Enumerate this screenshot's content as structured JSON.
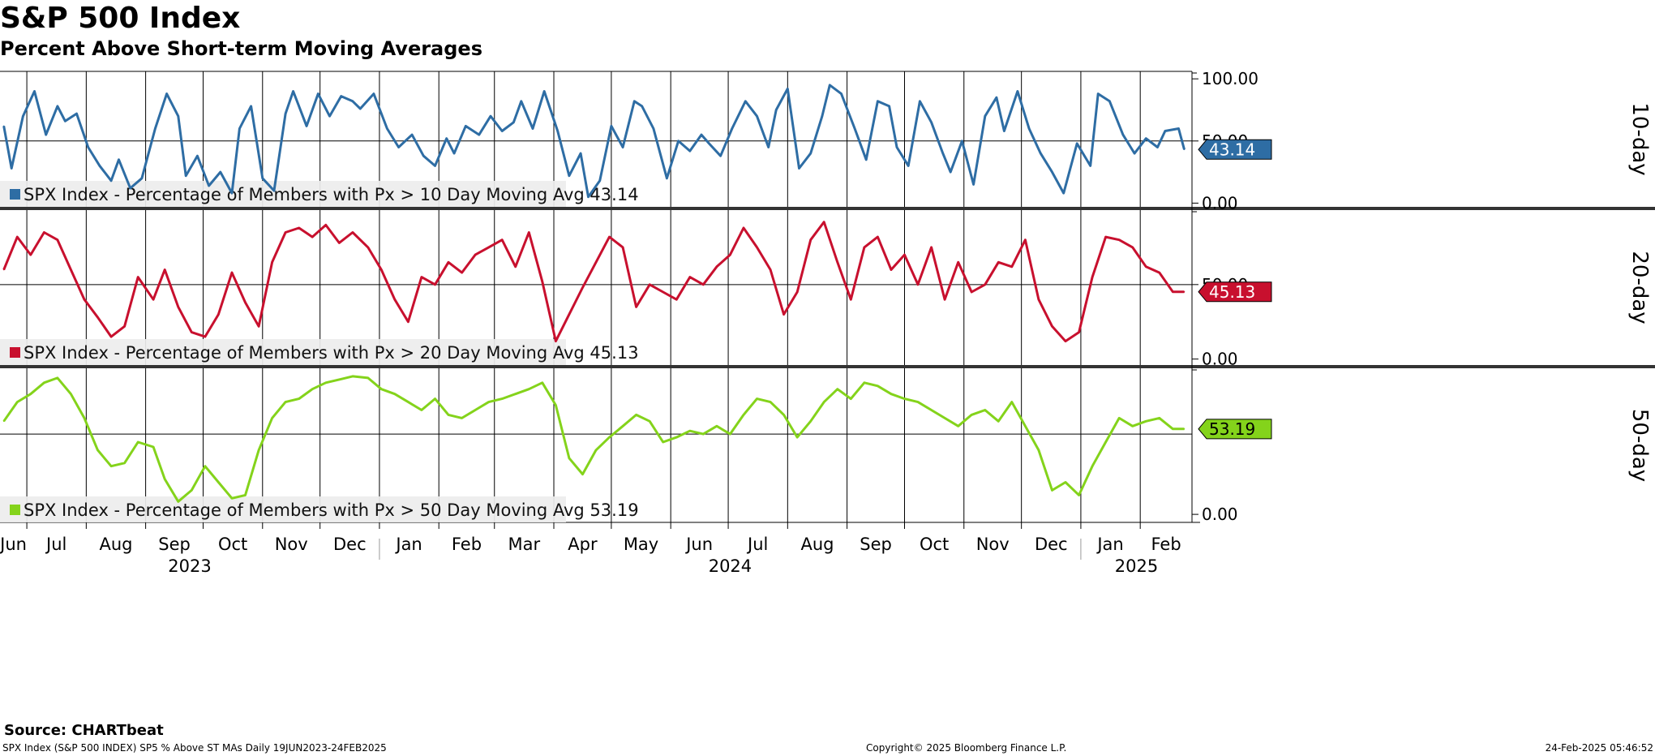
{
  "header": {
    "title": "S&P 500 Index",
    "subtitle": "Percent Above Short-term Moving Averages"
  },
  "footer": {
    "source": "Source: CHARTbeat",
    "left": "SPX Index (S&P 500 INDEX) SP5 % Above ST MAs  Daily 19JUN2023-24FEB2025",
    "center": "Copyright© 2025 Bloomberg Finance L.P.",
    "right": "24-Feb-2025 05:46:52"
  },
  "chart_data": [
    {
      "type": "line",
      "panel_label": "10-day",
      "legend": "SPX Index - Percentage of Members with Px > 10 Day Moving Avg 43.14",
      "last_value": "43.14",
      "color": "#2e6da4",
      "ylim": [
        -3,
        106
      ],
      "yticks": [
        "100.00",
        "50.00",
        "0.00"
      ],
      "x": [
        "2023-06-19",
        "2023-06-23",
        "2023-06-29",
        "2023-07-05",
        "2023-07-11",
        "2023-07-17",
        "2023-07-21",
        "2023-07-27",
        "2023-08-02",
        "2023-08-08",
        "2023-08-14",
        "2023-08-18",
        "2023-08-24",
        "2023-08-30",
        "2023-09-06",
        "2023-09-12",
        "2023-09-18",
        "2023-09-22",
        "2023-09-28",
        "2023-10-04",
        "2023-10-10",
        "2023-10-16",
        "2023-10-20",
        "2023-10-26",
        "2023-11-01",
        "2023-11-07",
        "2023-11-13",
        "2023-11-17",
        "2023-11-24",
        "2023-11-30",
        "2023-12-06",
        "2023-12-12",
        "2023-12-18",
        "2023-12-22",
        "2023-12-29",
        "2024-01-05",
        "2024-01-11",
        "2024-01-18",
        "2024-01-24",
        "2024-01-30",
        "2024-02-05",
        "2024-02-09",
        "2024-02-15",
        "2024-02-22",
        "2024-02-28",
        "2024-03-05",
        "2024-03-11",
        "2024-03-15",
        "2024-03-21",
        "2024-03-27",
        "2024-04-03",
        "2024-04-09",
        "2024-04-15",
        "2024-04-19",
        "2024-04-25",
        "2024-05-01",
        "2024-05-07",
        "2024-05-13",
        "2024-05-17",
        "2024-05-23",
        "2024-05-30",
        "2024-06-05",
        "2024-06-11",
        "2024-06-17",
        "2024-06-21",
        "2024-06-27",
        "2024-07-03",
        "2024-07-10",
        "2024-07-16",
        "2024-07-22",
        "2024-07-26",
        "2024-08-01",
        "2024-08-07",
        "2024-08-13",
        "2024-08-19",
        "2024-08-23",
        "2024-08-29",
        "2024-09-05",
        "2024-09-11",
        "2024-09-17",
        "2024-09-23",
        "2024-09-27",
        "2024-10-03",
        "2024-10-09",
        "2024-10-15",
        "2024-10-21",
        "2024-10-25",
        "2024-10-31",
        "2024-11-06",
        "2024-11-12",
        "2024-11-18",
        "2024-11-22",
        "2024-11-29",
        "2024-12-05",
        "2024-12-11",
        "2024-12-17",
        "2024-12-23",
        "2024-12-30",
        "2025-01-06",
        "2025-01-10",
        "2025-01-16",
        "2025-01-23",
        "2025-01-29",
        "2025-02-04",
        "2025-02-10",
        "2025-02-14",
        "2025-02-21",
        "2025-02-24"
      ],
      "values": [
        62,
        28,
        70,
        90,
        55,
        78,
        66,
        72,
        45,
        30,
        18,
        35,
        12,
        20,
        60,
        88,
        70,
        22,
        38,
        14,
        25,
        8,
        60,
        78,
        20,
        10,
        72,
        90,
        62,
        88,
        70,
        86,
        82,
        76,
        88,
        60,
        45,
        55,
        38,
        30,
        52,
        40,
        62,
        55,
        70,
        58,
        65,
        82,
        60,
        90,
        58,
        22,
        40,
        5,
        18,
        62,
        45,
        82,
        78,
        60,
        20,
        50,
        42,
        55,
        48,
        38,
        60,
        82,
        70,
        45,
        75,
        92,
        28,
        40,
        70,
        95,
        88,
        60,
        35,
        82,
        78,
        45,
        30,
        82,
        65,
        40,
        25,
        50,
        15,
        70,
        85,
        58,
        90,
        60,
        40,
        25,
        8,
        48,
        30,
        88,
        82,
        55,
        40,
        52,
        45,
        58,
        60,
        43.14
      ]
    },
    {
      "type": "line",
      "panel_label": "20-day",
      "legend": "SPX Index - Percentage of Members with Px > 20 Day Moving Avg 45.13",
      "last_value": "45.13",
      "color": "#c8102e",
      "ylim": [
        -4,
        100
      ],
      "yticks": [
        "50.00",
        "0.00"
      ],
      "x": [
        "2023-06-19",
        "2023-06-26",
        "2023-07-03",
        "2023-07-10",
        "2023-07-17",
        "2023-07-24",
        "2023-07-31",
        "2023-08-07",
        "2023-08-14",
        "2023-08-21",
        "2023-08-28",
        "2023-09-05",
        "2023-09-11",
        "2023-09-18",
        "2023-09-25",
        "2023-10-02",
        "2023-10-09",
        "2023-10-16",
        "2023-10-23",
        "2023-10-30",
        "2023-11-06",
        "2023-11-13",
        "2023-11-20",
        "2023-11-27",
        "2023-12-04",
        "2023-12-11",
        "2023-12-18",
        "2023-12-26",
        "2024-01-02",
        "2024-01-09",
        "2024-01-16",
        "2024-01-23",
        "2024-01-30",
        "2024-02-06",
        "2024-02-13",
        "2024-02-20",
        "2024-02-27",
        "2024-03-05",
        "2024-03-12",
        "2024-03-19",
        "2024-03-26",
        "2024-04-02",
        "2024-04-09",
        "2024-04-16",
        "2024-04-23",
        "2024-04-30",
        "2024-05-07",
        "2024-05-14",
        "2024-05-21",
        "2024-05-28",
        "2024-06-04",
        "2024-06-11",
        "2024-06-18",
        "2024-06-25",
        "2024-07-02",
        "2024-07-09",
        "2024-07-16",
        "2024-07-23",
        "2024-07-30",
        "2024-08-06",
        "2024-08-13",
        "2024-08-20",
        "2024-08-27",
        "2024-09-03",
        "2024-09-10",
        "2024-09-17",
        "2024-09-24",
        "2024-10-01",
        "2024-10-08",
        "2024-10-15",
        "2024-10-22",
        "2024-10-29",
        "2024-11-05",
        "2024-11-12",
        "2024-11-19",
        "2024-11-26",
        "2024-12-03",
        "2024-12-10",
        "2024-12-17",
        "2024-12-24",
        "2024-12-31",
        "2025-01-07",
        "2025-01-14",
        "2025-01-21",
        "2025-01-28",
        "2025-02-04",
        "2025-02-11",
        "2025-02-18",
        "2025-02-24"
      ],
      "values": [
        60,
        82,
        70,
        85,
        80,
        60,
        40,
        28,
        15,
        22,
        55,
        40,
        60,
        35,
        18,
        15,
        30,
        58,
        38,
        22,
        65,
        85,
        88,
        82,
        90,
        78,
        85,
        75,
        60,
        40,
        25,
        55,
        50,
        65,
        58,
        70,
        75,
        80,
        62,
        85,
        52,
        12,
        30,
        48,
        65,
        82,
        75,
        35,
        50,
        45,
        40,
        55,
        50,
        62,
        70,
        88,
        75,
        60,
        30,
        45,
        80,
        92,
        65,
        40,
        75,
        82,
        60,
        70,
        50,
        75,
        40,
        65,
        45,
        50,
        65,
        62,
        80,
        40,
        22,
        12,
        18,
        55,
        82,
        80,
        75,
        62,
        58,
        45.13,
        45.13
      ]
    },
    {
      "type": "line",
      "panel_label": "50-day",
      "legend": "SPX Index - Percentage of Members with Px > 50 Day Moving Avg 53.19",
      "last_value": "53.19",
      "color": "#84d31b",
      "ylim": [
        -5,
        91
      ],
      "yticks": [
        "0.00"
      ],
      "x": [
        "2023-06-19",
        "2023-06-26",
        "2023-07-03",
        "2023-07-10",
        "2023-07-17",
        "2023-07-24",
        "2023-07-31",
        "2023-08-07",
        "2023-08-14",
        "2023-08-21",
        "2023-08-28",
        "2023-09-05",
        "2023-09-11",
        "2023-09-18",
        "2023-09-25",
        "2023-10-02",
        "2023-10-09",
        "2023-10-16",
        "2023-10-23",
        "2023-10-30",
        "2023-11-06",
        "2023-11-13",
        "2023-11-20",
        "2023-11-27",
        "2023-12-04",
        "2023-12-11",
        "2023-12-18",
        "2023-12-26",
        "2024-01-02",
        "2024-01-09",
        "2024-01-16",
        "2024-01-23",
        "2024-01-30",
        "2024-02-06",
        "2024-02-13",
        "2024-02-20",
        "2024-02-27",
        "2024-03-05",
        "2024-03-12",
        "2024-03-19",
        "2024-03-26",
        "2024-04-02",
        "2024-04-09",
        "2024-04-16",
        "2024-04-23",
        "2024-04-30",
        "2024-05-07",
        "2024-05-14",
        "2024-05-21",
        "2024-05-28",
        "2024-06-04",
        "2024-06-11",
        "2024-06-18",
        "2024-06-25",
        "2024-07-02",
        "2024-07-09",
        "2024-07-16",
        "2024-07-23",
        "2024-07-30",
        "2024-08-06",
        "2024-08-13",
        "2024-08-20",
        "2024-08-27",
        "2024-09-03",
        "2024-09-10",
        "2024-09-17",
        "2024-09-24",
        "2024-10-01",
        "2024-10-08",
        "2024-10-15",
        "2024-10-22",
        "2024-10-29",
        "2024-11-05",
        "2024-11-12",
        "2024-11-19",
        "2024-11-26",
        "2024-12-03",
        "2024-12-10",
        "2024-12-17",
        "2024-12-24",
        "2024-12-31",
        "2025-01-07",
        "2025-01-14",
        "2025-01-21",
        "2025-01-28",
        "2025-02-04",
        "2025-02-11",
        "2025-02-18",
        "2025-02-24"
      ],
      "values": [
        58,
        70,
        75,
        82,
        85,
        75,
        60,
        40,
        30,
        32,
        45,
        42,
        22,
        8,
        15,
        30,
        20,
        10,
        12,
        40,
        60,
        70,
        72,
        78,
        82,
        84,
        86,
        85,
        78,
        75,
        70,
        65,
        72,
        62,
        60,
        65,
        70,
        72,
        75,
        78,
        82,
        68,
        35,
        25,
        40,
        48,
        55,
        62,
        58,
        45,
        48,
        52,
        50,
        55,
        50,
        62,
        72,
        70,
        62,
        48,
        58,
        70,
        78,
        72,
        82,
        80,
        75,
        72,
        70,
        65,
        60,
        55,
        62,
        65,
        58,
        70,
        55,
        40,
        15,
        20,
        12,
        30,
        45,
        60,
        55,
        58,
        60,
        53.19,
        53.19
      ]
    }
  ],
  "x_axis": {
    "months": [
      "Jun",
      "Jul",
      "Aug",
      "Sep",
      "Oct",
      "Nov",
      "Dec",
      "Jan",
      "Feb",
      "Mar",
      "Apr",
      "May",
      "Jun",
      "Jul",
      "Aug",
      "Sep",
      "Oct",
      "Nov",
      "Dec",
      "Jan",
      "Feb"
    ],
    "years": [
      "2023",
      "2024",
      "2025"
    ]
  }
}
